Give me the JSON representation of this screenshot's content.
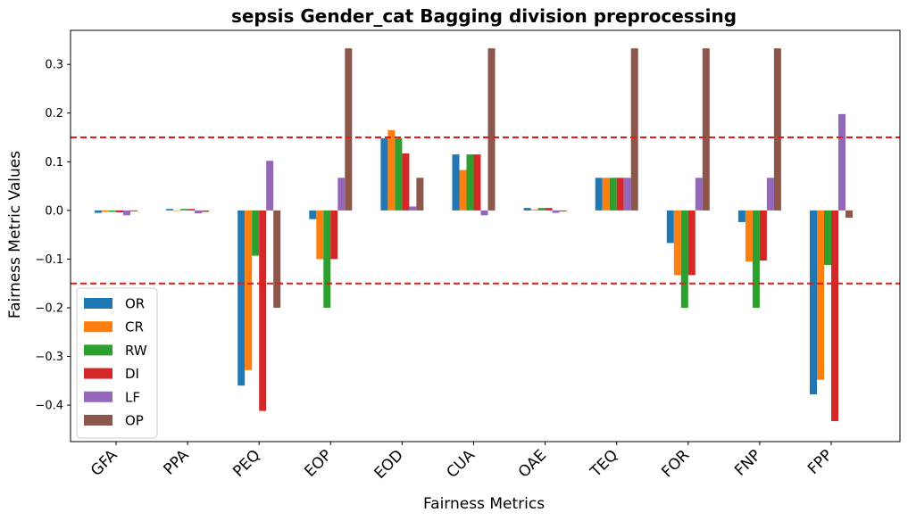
{
  "chart_data": {
    "type": "bar",
    "title": "sepsis Gender_cat Bagging division preprocessing",
    "xlabel": "Fairness Metrics",
    "ylabel": "Fairness Metric Values",
    "ylim": [
      -0.475,
      0.37
    ],
    "yticks": [
      -0.4,
      -0.3,
      -0.2,
      -0.1,
      0.0,
      0.1,
      0.2,
      0.3
    ],
    "ytick_labels": [
      "−0.4",
      "−0.3",
      "−0.2",
      "−0.1",
      "0.0",
      "0.1",
      "0.2",
      "0.3"
    ],
    "categories": [
      "GFA",
      "PPA",
      "PEQ",
      "EOP",
      "EOD",
      "CUA",
      "OAE",
      "TEQ",
      "FOR",
      "FNP",
      "FPP"
    ],
    "series": [
      {
        "name": "OR",
        "color": "#1f77b4",
        "values": [
          -0.005,
          0.003,
          -0.36,
          -0.018,
          0.148,
          0.115,
          0.005,
          0.067,
          -0.067,
          -0.024,
          -0.378
        ]
      },
      {
        "name": "CR",
        "color": "#ff7f0e",
        "values": [
          -0.003,
          0.0,
          -0.328,
          -0.1,
          0.165,
          0.083,
          0.002,
          0.067,
          -0.133,
          -0.105,
          -0.348
        ]
      },
      {
        "name": "RW",
        "color": "#2ca02c",
        "values": [
          -0.003,
          0.003,
          -0.093,
          -0.2,
          0.148,
          0.115,
          0.005,
          0.067,
          -0.2,
          -0.2,
          -0.112
        ]
      },
      {
        "name": "DI",
        "color": "#d62728",
        "values": [
          -0.004,
          0.003,
          -0.412,
          -0.1,
          0.117,
          0.115,
          0.005,
          0.067,
          -0.133,
          -0.103,
          -0.433
        ]
      },
      {
        "name": "LF",
        "color": "#9467bd",
        "values": [
          -0.01,
          -0.006,
          0.102,
          0.067,
          0.008,
          -0.01,
          -0.005,
          0.067,
          0.067,
          0.067,
          0.198
        ]
      },
      {
        "name": "OP",
        "color": "#8c564b",
        "values": [
          -0.002,
          -0.003,
          -0.2,
          0.333,
          0.067,
          0.333,
          -0.002,
          0.333,
          0.333,
          0.333,
          -0.015
        ]
      }
    ],
    "reference_lines": [
      0.15,
      -0.15
    ],
    "reference_line_color": "#e41a1c",
    "grid": false,
    "legend_position": "lower-left"
  }
}
